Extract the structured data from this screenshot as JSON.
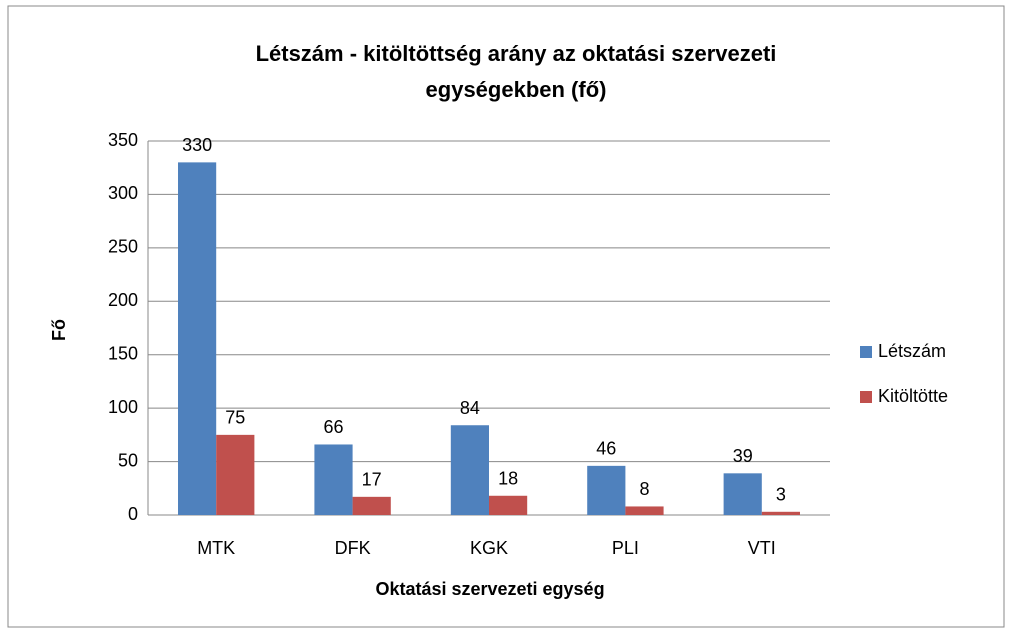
{
  "chart_data": {
    "type": "bar",
    "title": "Létszám - kitöltöttség arány az oktatási szervezeti egységekben (fő)",
    "x_label": "Oktatási szervezeti egység",
    "y_label": "Fő",
    "categories": [
      "MTK",
      "DFK",
      "KGK",
      "PLI",
      "VTI"
    ],
    "series": [
      {
        "name": "Létszám",
        "color": "#4f81bd",
        "values": [
          330,
          66,
          84,
          46,
          39
        ]
      },
      {
        "name": "Kitöltötte",
        "color": "#c0504d",
        "values": [
          75,
          17,
          18,
          8,
          3
        ]
      }
    ],
    "ylim": [
      0,
      350
    ],
    "yticks": [
      0,
      50,
      100,
      150,
      200,
      250,
      300,
      350
    ],
    "grid": true,
    "legend": "right"
  }
}
